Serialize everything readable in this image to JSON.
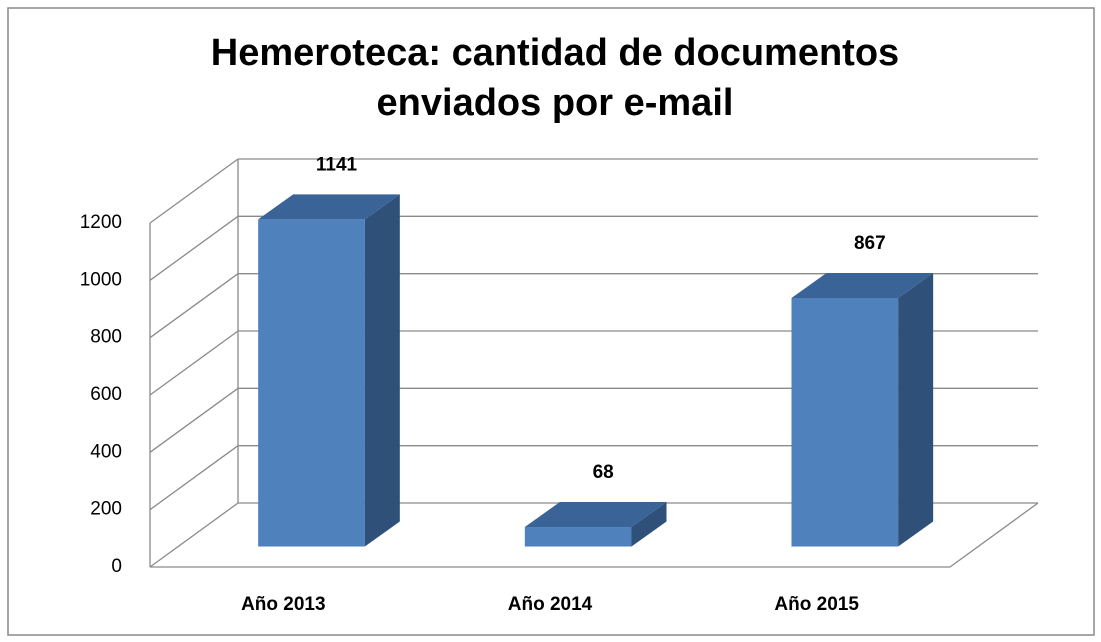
{
  "chart_data": {
    "type": "bar3d",
    "title": "Hemeroteca: cantidad de documentos enviados por e-mail",
    "categories": [
      "Año 2013",
      "Año 2014",
      "Año 2015"
    ],
    "values": [
      1141,
      68,
      867
    ],
    "color": "#4f81bd",
    "ylim": [
      0,
      1200
    ],
    "yticks": [
      0,
      200,
      400,
      600,
      800,
      1000,
      1200
    ],
    "grid": true
  }
}
